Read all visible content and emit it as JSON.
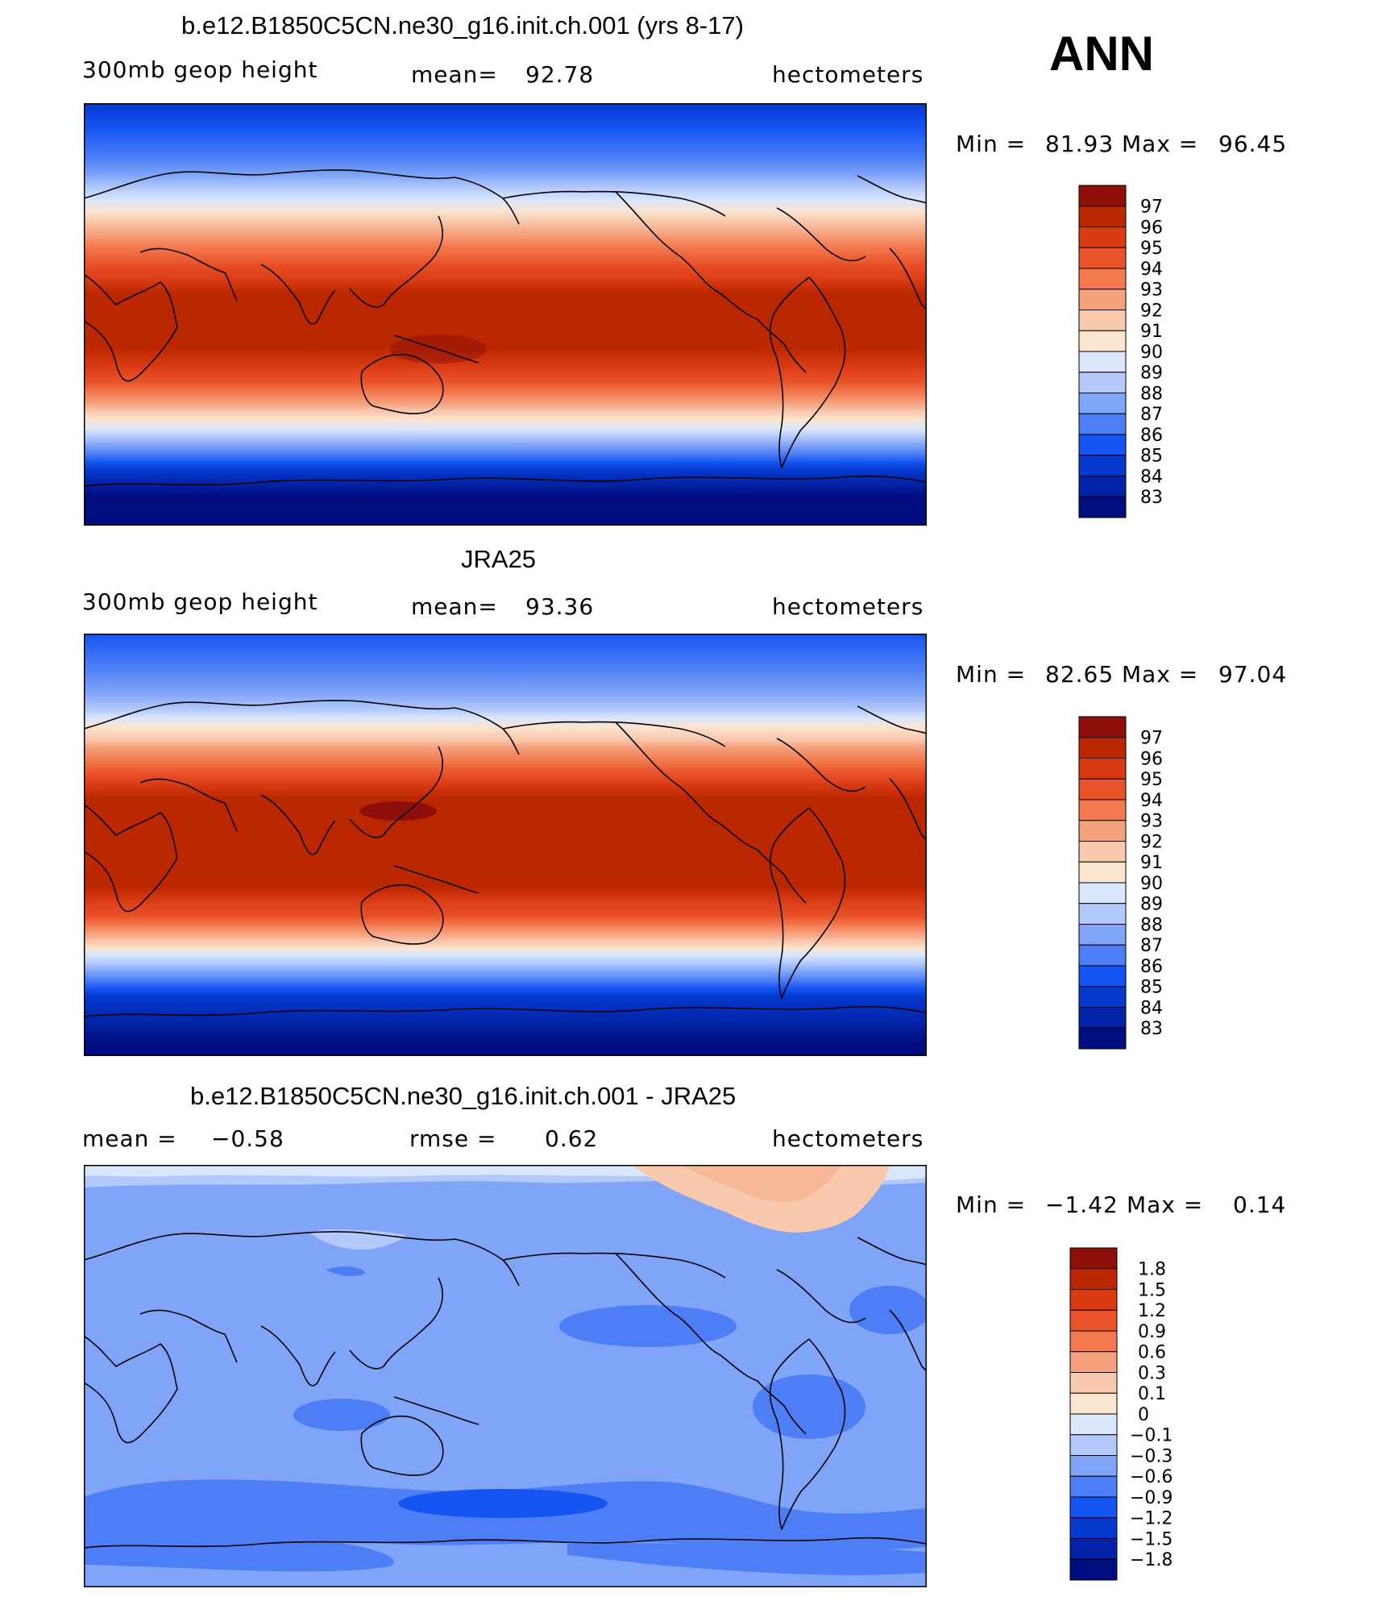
{
  "figure": {
    "season": "ANN",
    "colors": {
      "warm": [
        "#fbe4d0",
        "#f8c9ad",
        "#f6a07e",
        "#f37a4e",
        "#e9532a",
        "#d83a12",
        "#bb2700",
        "#8e0f0a"
      ],
      "cool": [
        "#000d80",
        "#0324a8",
        "#0539cf",
        "#1555f2",
        "#4d7ef6",
        "#7fa4f8",
        "#b3c9fb",
        "#d9e6fc"
      ]
    }
  },
  "chart_data": [
    {
      "type": "heatmap",
      "title": "b.e12.B1850C5CN.ne30_g16.init.ch.001 (yrs 8-17)",
      "variable": "300mb geop height",
      "mean_label": "mean=",
      "mean_value": "92.78",
      "units": "hectometers",
      "min_label": "Min =",
      "min_value": "81.93",
      "max_label": "Max =",
      "max_value": "96.45",
      "colorbar_labels": [
        "97",
        "96",
        "95",
        "94",
        "93",
        "92",
        "91",
        "90",
        "89",
        "88",
        "87",
        "86",
        "85",
        "84",
        "83"
      ]
    },
    {
      "type": "heatmap",
      "title": "JRA25",
      "variable": "300mb geop height",
      "mean_label": "mean=",
      "mean_value": "93.36",
      "units": "hectometers",
      "min_label": "Min =",
      "min_value": "82.65",
      "max_label": "Max =",
      "max_value": "97.04",
      "colorbar_labels": [
        "97",
        "96",
        "95",
        "94",
        "93",
        "92",
        "91",
        "90",
        "89",
        "88",
        "87",
        "86",
        "85",
        "84",
        "83"
      ]
    },
    {
      "type": "heatmap",
      "title": "b.e12.B1850C5CN.ne30_g16.init.ch.001 - JRA25",
      "mean_label": "mean =",
      "mean_value": "−0.58",
      "rmse_label": "rmse =",
      "rmse_value": "0.62",
      "units": "hectometers",
      "min_label": "Min =",
      "min_value": "−1.42",
      "max_label": "Max =",
      "max_value": "0.14",
      "colorbar_labels": [
        "1.8",
        "1.5",
        "1.2",
        "0.9",
        "0.6",
        "0.3",
        "0.1",
        "0",
        "−0.1",
        "−0.3",
        "−0.6",
        "−0.9",
        "−1.2",
        "−1.5",
        "−1.8"
      ]
    }
  ]
}
